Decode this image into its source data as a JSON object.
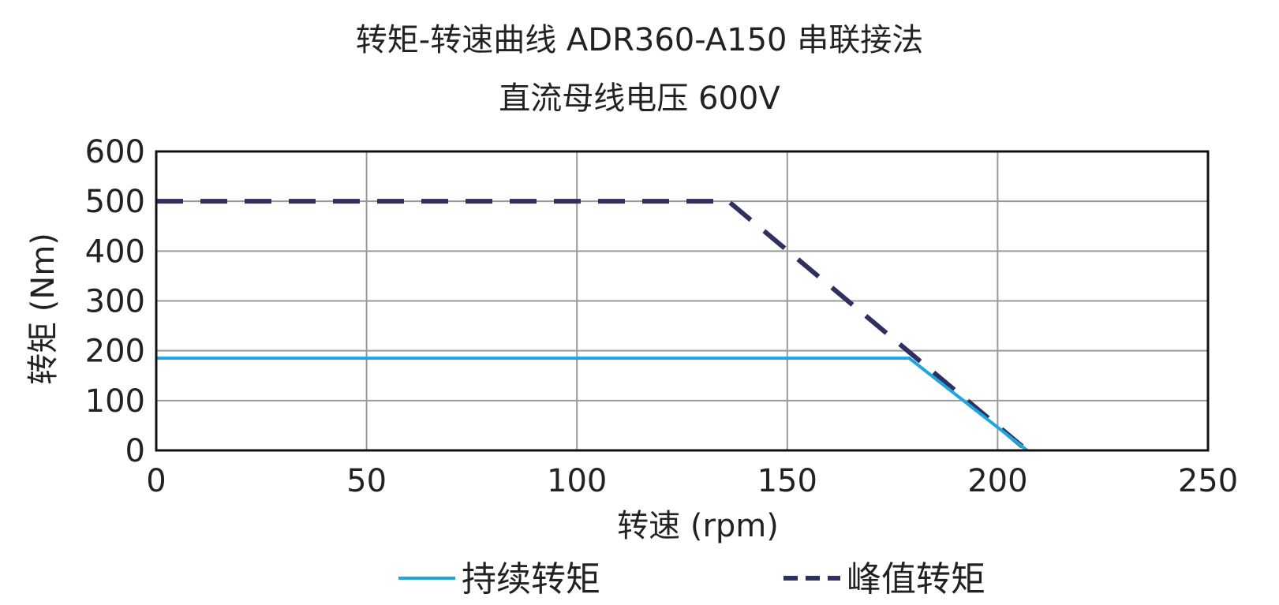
{
  "chart_data": {
    "type": "line",
    "title": "转矩-转速曲线 ADR360-A150 串联接法",
    "subtitle": "直流母线电压 600V",
    "xlabel": "转速 (rpm)",
    "ylabel": "转矩 (Nm)",
    "xlim": [
      0,
      250
    ],
    "ylim": [
      0,
      600
    ],
    "xticks": [
      "0",
      "50",
      "100",
      "150",
      "200",
      "250"
    ],
    "yticks": [
      "0",
      "100",
      "200",
      "300",
      "400",
      "500",
      "600"
    ],
    "grid": true,
    "legend_position": "bottom",
    "series": [
      {
        "name": "持续转矩",
        "style": "solid",
        "color": "#1ea7dc",
        "x": [
          0,
          179,
          207
        ],
        "y": [
          185,
          185,
          0
        ]
      },
      {
        "name": "峰值转矩",
        "style": "dashed",
        "color": "#2e3160",
        "x": [
          0,
          136,
          207
        ],
        "y": [
          500,
          500,
          0
        ]
      }
    ]
  }
}
